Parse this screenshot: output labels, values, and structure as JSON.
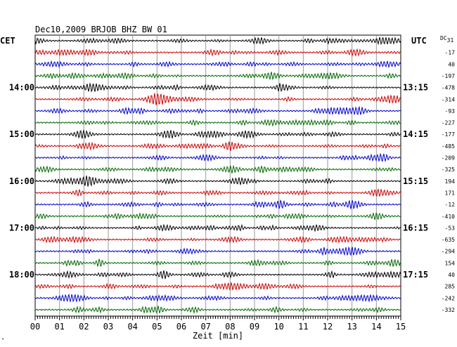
{
  "chart_data": {
    "type": "line",
    "title": "Dec10,2009   BRJOB BHZ BW 01",
    "xlabel": "Zeit [min]",
    "xlim": [
      0,
      15
    ],
    "x_ticks": [
      "00",
      "01",
      "02",
      "03",
      "04",
      "05",
      "06",
      "07",
      "08",
      "09",
      "10",
      "11",
      "12",
      "13",
      "14",
      "15"
    ],
    "left_axis_label": "CET",
    "right_axis_label": "UTC",
    "dc_label": "DC",
    "dc_sub": "31",
    "corner_mark": "ᴬ",
    "grid": true,
    "line_colors": [
      "#000000",
      "#cc0000",
      "#0000cc",
      "#006600"
    ],
    "cet_labels": [
      {
        "trace": 4,
        "text": "14:00"
      },
      {
        "trace": 8,
        "text": "15:00"
      },
      {
        "trace": 12,
        "text": "16:00"
      },
      {
        "trace": 16,
        "text": "17:00"
      },
      {
        "trace": 20,
        "text": "18:00"
      }
    ],
    "utc_labels": [
      {
        "trace": 4,
        "text": "13:15"
      },
      {
        "trace": 8,
        "text": "14:15"
      },
      {
        "trace": 12,
        "text": "15:15"
      },
      {
        "trace": 16,
        "text": "16:15"
      },
      {
        "trace": 20,
        "text": "17:15"
      }
    ],
    "dc_offsets": [
      "-17",
      "40",
      "-197",
      "-478",
      "-314",
      "-93",
      "-227",
      "-177",
      "-485",
      "-209",
      "-325",
      "194",
      "171",
      "-12",
      "-410",
      "-53",
      "-635",
      "-294",
      "154",
      "40",
      "285",
      "-242",
      "-332"
    ],
    "trace_count": 24
  }
}
